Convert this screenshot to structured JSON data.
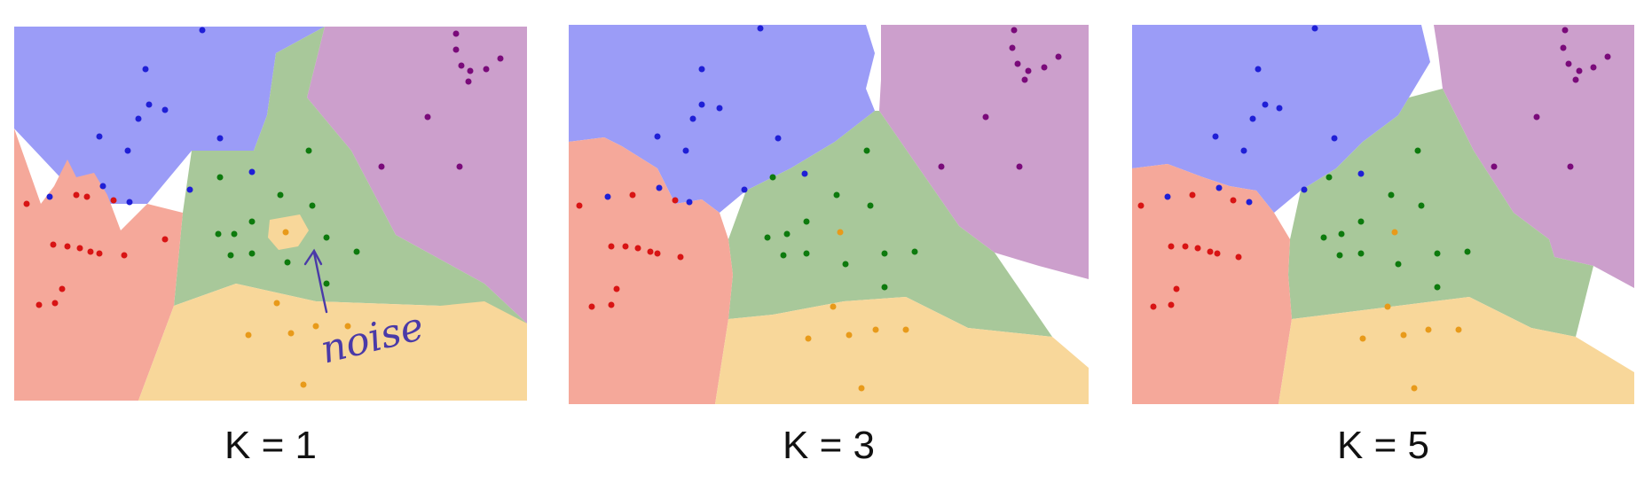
{
  "panels": [
    {
      "id": "k1",
      "caption": "K = 1"
    },
    {
      "id": "k3",
      "caption": "K = 3"
    },
    {
      "id": "k5",
      "caption": "K = 5"
    }
  ],
  "annotation": {
    "text": "noise"
  },
  "colors": {
    "region_blue": "#9b9cf7",
    "region_purple": "#cc9fcc",
    "region_green": "#a8c89a",
    "region_red": "#f5a89a",
    "region_orange": "#f8d79a",
    "point_blue": "#1f1fd6",
    "point_purple": "#7a0a7a",
    "point_green": "#0d7a0d",
    "point_red": "#d81414",
    "point_orange": "#e89a1a",
    "ink": "#4a3aa8"
  }
}
